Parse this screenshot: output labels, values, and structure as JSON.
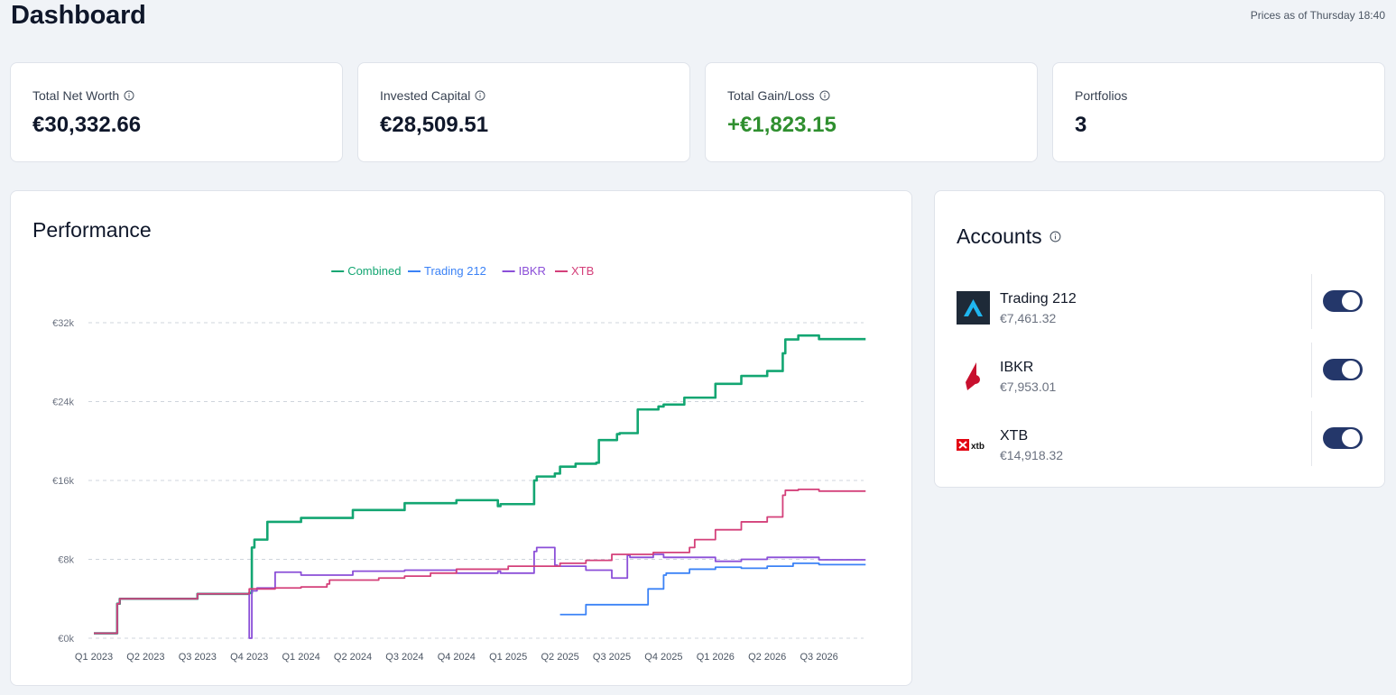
{
  "header": {
    "title": "Dashboard",
    "prices_as_of": "Prices as of Thursday 18:40"
  },
  "stats": [
    {
      "label": "Total Net Worth",
      "value": "€30,332.66",
      "info": true
    },
    {
      "label": "Invested Capital",
      "value": "€28,509.51",
      "info": true
    },
    {
      "label": "Total Gain/Loss",
      "value": "+€1,823.15",
      "info": true,
      "color": "#2f8f2f"
    },
    {
      "label": "Portfolios",
      "value": "3",
      "info": false
    }
  ],
  "performance": {
    "title": "Performance",
    "chart_data": {
      "type": "line",
      "legend_position": "top-center",
      "grid": "horizontal-dashed",
      "y_ticks": [
        "€0k",
        "€8k",
        "€16k",
        "€24k",
        "€32k"
      ],
      "ylim": [
        0,
        32000
      ],
      "x_ticks": [
        "Q1 2023",
        "Q2 2023",
        "Q3 2023",
        "Q4 2023",
        "Q1 2024",
        "Q2 2024",
        "Q3 2024",
        "Q4 2024",
        "Q1 2025",
        "Q2 2025",
        "Q3 2025",
        "Q4 2025",
        "Q1 2026",
        "Q2 2026",
        "Q3 2026"
      ],
      "series": [
        {
          "name": "Combined",
          "color": "#13a672",
          "x": [
            0,
            0.45,
            0.5,
            2.0,
            3.0,
            3.05,
            3.1,
            3.35,
            3.5,
            4.0,
            5.0,
            6.0,
            7.0,
            7.8,
            7.85,
            8.5,
            8.55,
            8.9,
            9.0,
            9.3,
            9.7,
            9.75,
            10.1,
            10.15,
            10.5,
            10.9,
            11.0,
            11.4,
            12.0,
            12.5,
            13.0,
            13.3,
            13.35,
            13.6,
            14.0,
            14.9
          ],
          "y": [
            500,
            500,
            3500,
            4000,
            4500,
            4600,
            9200,
            10000,
            11800,
            11800,
            12200,
            13000,
            13700,
            14000,
            13400,
            13600,
            16000,
            16400,
            16700,
            17400,
            17700,
            17800,
            20100,
            20700,
            20800,
            23200,
            23500,
            23700,
            24400,
            25800,
            26600,
            27100,
            28900,
            30300,
            30700,
            30333
          ]
        },
        {
          "name": "Trading 212",
          "color": "#3b82f6",
          "x": [
            9.0,
            9.5,
            9.55,
            10.7,
            10.75,
            11.0,
            11.05,
            11.5,
            12.0,
            12.5,
            13.0,
            13.5,
            14.0,
            14.9
          ],
          "y": [
            2400,
            2400,
            3400,
            3400,
            5000,
            5000,
            6400,
            6600,
            7000,
            7200,
            7100,
            7300,
            7600,
            7461
          ]
        },
        {
          "name": "IBKR",
          "color": "#8b4fd8",
          "x": [
            0,
            0.45,
            0.5,
            2.0,
            3.0,
            3.05,
            3.1,
            3.15,
            3.5,
            3.55,
            4.0,
            5.0,
            6.0,
            7.0,
            7.8,
            7.85,
            8.5,
            8.55,
            8.9,
            8.95,
            9.5,
            10.0,
            10.3,
            10.35,
            10.8,
            11.0,
            12.0,
            12.5,
            13.0,
            14.0,
            14.9
          ],
          "y": [
            500,
            500,
            3500,
            4000,
            4500,
            0,
            4800,
            4800,
            5100,
            6700,
            6700,
            6400,
            6800,
            6900,
            6600,
            6800,
            6600,
            8800,
            9200,
            7400,
            7300,
            6900,
            6100,
            8400,
            8200,
            8500,
            8200,
            7800,
            8000,
            8200,
            7953
          ]
        },
        {
          "name": "XTB",
          "color": "#d4407a",
          "x": [
            0,
            0.45,
            0.5,
            2.0,
            3.0,
            3.5,
            4.0,
            4.5,
            4.55,
            5.5,
            6.0,
            6.5,
            7.0,
            8.0,
            9.0,
            9.5,
            10.0,
            10.8,
            11.5,
            11.6,
            12.0,
            12.5,
            13.0,
            13.3,
            13.35,
            13.6,
            14.0,
            14.9
          ],
          "y": [
            500,
            500,
            3500,
            4000,
            4500,
            5000,
            5100,
            5200,
            5500,
            5900,
            6100,
            6300,
            6600,
            7000,
            7300,
            7600,
            7900,
            8500,
            8700,
            9200,
            10000,
            11000,
            11800,
            12300,
            14500,
            15000,
            15100,
            14918
          ]
        }
      ]
    }
  },
  "accounts": {
    "title": "Accounts",
    "items": [
      {
        "name": "Trading 212",
        "value": "€7,461.32",
        "logo": "trading212-logo",
        "enabled": true
      },
      {
        "name": "IBKR",
        "value": "€7,953.01",
        "logo": "ibkr-logo",
        "enabled": true
      },
      {
        "name": "XTB",
        "value": "€14,918.32",
        "logo": "xtb-logo",
        "logo_text": "xtb",
        "enabled": true
      }
    ]
  }
}
